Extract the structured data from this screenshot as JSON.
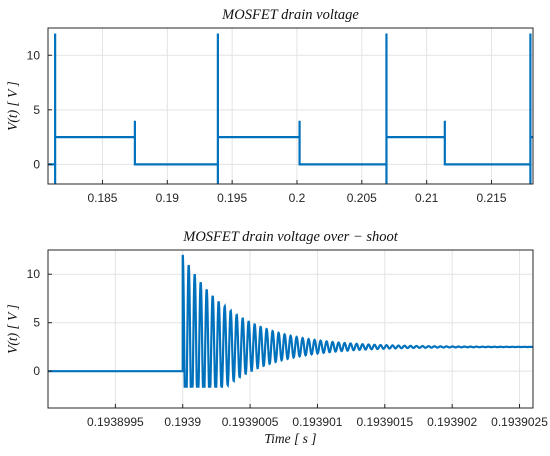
{
  "chart_data": [
    {
      "type": "line",
      "title": "MOSFET drain voltage",
      "xlabel": "",
      "ylabel": "V(t) [ V ]",
      "xlim": [
        0.1808,
        0.2182
      ],
      "ylim": [
        -1.8,
        12.5
      ],
      "xticks": [
        0.185,
        0.19,
        0.195,
        0.2,
        0.205,
        0.21,
        0.215
      ],
      "xtick_labels": [
        "0.185",
        "0.19",
        "0.195",
        "0.2",
        "0.205",
        "0.21",
        "0.215"
      ],
      "yticks": [
        0,
        5,
        10
      ],
      "ytick_labels": [
        "0",
        "5",
        "10"
      ],
      "grid": true,
      "color": "#0072BD",
      "x": [
        0.1808,
        0.18135,
        0.18135,
        0.18135,
        0.18135,
        0.1875,
        0.1875,
        0.1875,
        0.1875,
        0.1939,
        0.1939,
        0.1939,
        0.1939,
        0.2002,
        0.2002,
        0.2002,
        0.2002,
        0.2069,
        0.2069,
        0.2069,
        0.2069,
        0.2114,
        0.2114,
        0.2114,
        0.2114,
        0.218,
        0.218,
        0.218,
        0.218,
        0.2182
      ],
      "y": [
        0,
        0,
        12,
        -1.8,
        2.5,
        2.5,
        4,
        0,
        0,
        0,
        12,
        -1.8,
        2.5,
        2.5,
        4,
        0,
        0,
        0,
        12,
        -1.8,
        2.5,
        2.5,
        4,
        0,
        0,
        0,
        12,
        -1.8,
        2.5,
        2.5
      ]
    },
    {
      "type": "line",
      "title": "MOSFET drain voltage over − shoot",
      "xlabel": "Time [ s ]",
      "ylabel": "V(t) [ V ]",
      "xlim": [
        0.193899,
        0.1939026
      ],
      "ylim": [
        -3.8,
        12.5
      ],
      "xticks": [
        0.1938995,
        0.1939,
        0.1939005,
        0.193901,
        0.1939015,
        0.193902,
        0.1939025
      ],
      "xtick_labels": [
        "0.1938995",
        "0.1939",
        "0.1939005",
        "0.193901",
        "0.1939015",
        "0.193902",
        "0.1939025"
      ],
      "yticks": [
        0,
        5,
        10
      ],
      "ytick_labels": [
        "0",
        "5",
        "10"
      ],
      "grid": true,
      "color": "#0072BD",
      "step_time": 0.1939,
      "steady_value": 2.5,
      "peak_value": 12,
      "min_value": -1.6,
      "ringing_period": 4.45e-08,
      "ringing_decay_time": 3.8e-07
    }
  ]
}
